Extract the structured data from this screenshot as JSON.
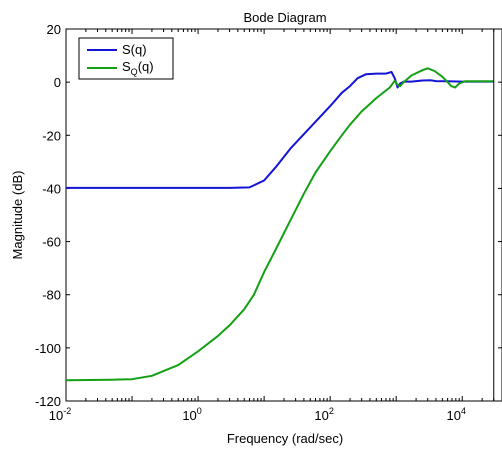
{
  "chart_data": {
    "type": "line",
    "title": "Bode Diagram",
    "xlabel": "Frequency  (rad/sec)",
    "ylabel": "Magnitude (dB)",
    "x_scale": "log",
    "xlim": [
      0.01,
      40000
    ],
    "ylim": [
      -120,
      20
    ],
    "y_ticks": [
      20,
      0,
      -20,
      -40,
      -60,
      -80,
      -100,
      -120
    ],
    "x_ticks": [
      {
        "value": 0.01,
        "base": "10",
        "exp": "-2"
      },
      {
        "value": 1,
        "base": "10",
        "exp": "0"
      },
      {
        "value": 100,
        "base": "10",
        "exp": "2"
      },
      {
        "value": 10000,
        "base": "10",
        "exp": "4"
      }
    ],
    "vertical_line_x": 30000,
    "grid": false,
    "legend_position": "top-left",
    "series": [
      {
        "name": "S(q)",
        "color": "#1414d4",
        "points": [
          [
            0.01,
            -39.8
          ],
          [
            0.1,
            -39.8
          ],
          [
            1,
            -39.8
          ],
          [
            3,
            -39.8
          ],
          [
            6,
            -39.6
          ],
          [
            10,
            -37
          ],
          [
            15,
            -32
          ],
          [
            25,
            -25
          ],
          [
            50,
            -17
          ],
          [
            100,
            -9
          ],
          [
            150,
            -4
          ],
          [
            200,
            -1.5
          ],
          [
            260,
            1.5
          ],
          [
            350,
            3
          ],
          [
            500,
            3.2
          ],
          [
            700,
            3.2
          ],
          [
            850,
            3.8
          ],
          [
            950,
            1.5
          ],
          [
            1050,
            -2
          ],
          [
            1150,
            -0.5
          ],
          [
            1300,
            0.2
          ],
          [
            1700,
            0.2
          ],
          [
            2500,
            0.6
          ],
          [
            3300,
            0.7
          ],
          [
            4000,
            0.4
          ],
          [
            6000,
            0.3
          ],
          [
            10000,
            0.2
          ],
          [
            20000,
            0.2
          ],
          [
            30000,
            0.2
          ]
        ]
      },
      {
        "name_main": "S",
        "name_sub": "Q",
        "name_suffix": "(q)",
        "color": "#14a014",
        "points": [
          [
            0.01,
            -112.2
          ],
          [
            0.05,
            -112
          ],
          [
            0.1,
            -111.8
          ],
          [
            0.2,
            -110.5
          ],
          [
            0.5,
            -106.5
          ],
          [
            1,
            -101.3
          ],
          [
            2,
            -95.5
          ],
          [
            3,
            -91.5
          ],
          [
            5,
            -85.5
          ],
          [
            7,
            -80
          ],
          [
            10,
            -71.5
          ],
          [
            15,
            -63
          ],
          [
            25,
            -52
          ],
          [
            40,
            -42
          ],
          [
            60,
            -34
          ],
          [
            100,
            -26
          ],
          [
            150,
            -20
          ],
          [
            200,
            -16
          ],
          [
            300,
            -11
          ],
          [
            500,
            -6
          ],
          [
            800,
            -2
          ],
          [
            950,
            0.5
          ],
          [
            1050,
            -1
          ],
          [
            1150,
            -1.5
          ],
          [
            1300,
            0
          ],
          [
            1700,
            2.5
          ],
          [
            2500,
            4.5
          ],
          [
            3000,
            5.2
          ],
          [
            3800,
            4.2
          ],
          [
            5000,
            2
          ],
          [
            6000,
            0
          ],
          [
            6800,
            -1.5
          ],
          [
            7800,
            -2
          ],
          [
            9000,
            -0.5
          ],
          [
            11000,
            0.3
          ],
          [
            15000,
            0.3
          ],
          [
            30000,
            0.3
          ]
        ]
      }
    ]
  }
}
